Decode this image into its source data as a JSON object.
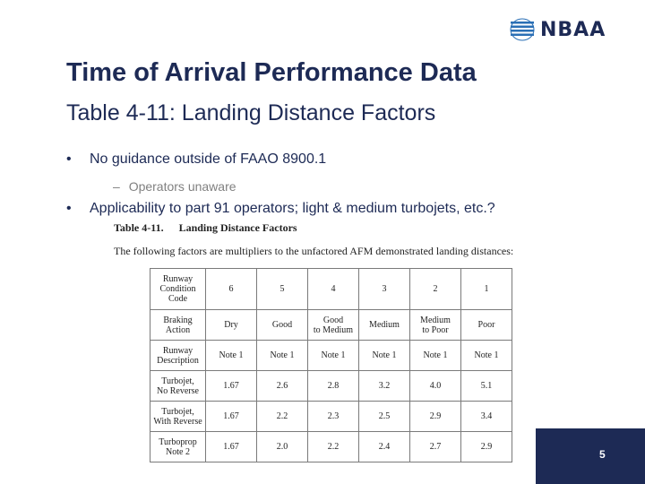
{
  "logo": {
    "text": "NBAA",
    "color": "#1d2a55"
  },
  "slide": {
    "title": "Time of Arrival Performance Data",
    "subtitle": "Table 4-11: Landing Distance Factors",
    "bullets": [
      {
        "marker": "•",
        "text": "No guidance outside of FAAO 8900.1"
      },
      {
        "marker": "•",
        "text": "Applicability to part 91 operators; light & medium turbojets, etc.?"
      }
    ],
    "sub_bullet": {
      "marker": "–",
      "text": "Operators unaware"
    },
    "page_number": "5"
  },
  "document": {
    "table_label": "Table 4-11.",
    "table_title": "Landing Distance Factors",
    "intro": "The following factors are multipliers to the unfactored AFM demonstrated landing distances:",
    "rows": [
      {
        "header": [
          "Runway",
          "Condition",
          "Code"
        ],
        "cells": [
          "6",
          "5",
          "4",
          "3",
          "2",
          "1"
        ]
      },
      {
        "header": [
          "Braking",
          "Action"
        ],
        "cells": [
          "Dry",
          "Good",
          "Good|to Medium",
          "Medium",
          "Medium|to Poor",
          "Poor"
        ]
      },
      {
        "header": [
          "Runway",
          "Description"
        ],
        "cells": [
          "Note 1",
          "Note 1",
          "Note 1",
          "Note 1",
          "Note 1",
          "Note 1"
        ]
      },
      {
        "header": [
          "Turbojet,",
          "No Reverse"
        ],
        "cells": [
          "1.67",
          "2.6",
          "2.8",
          "3.2",
          "4.0",
          "5.1"
        ]
      },
      {
        "header": [
          "Turbojet,",
          "With Reverse"
        ],
        "cells": [
          "1.67",
          "2.2",
          "2.3",
          "2.5",
          "2.9",
          "3.4"
        ]
      },
      {
        "header": [
          "Turboprop",
          "Note 2"
        ],
        "cells": [
          "1.67",
          "2.0",
          "2.2",
          "2.4",
          "2.7",
          "2.9"
        ]
      }
    ]
  },
  "colors": {
    "brand": "#1d2a55",
    "sub_text": "#808080"
  }
}
